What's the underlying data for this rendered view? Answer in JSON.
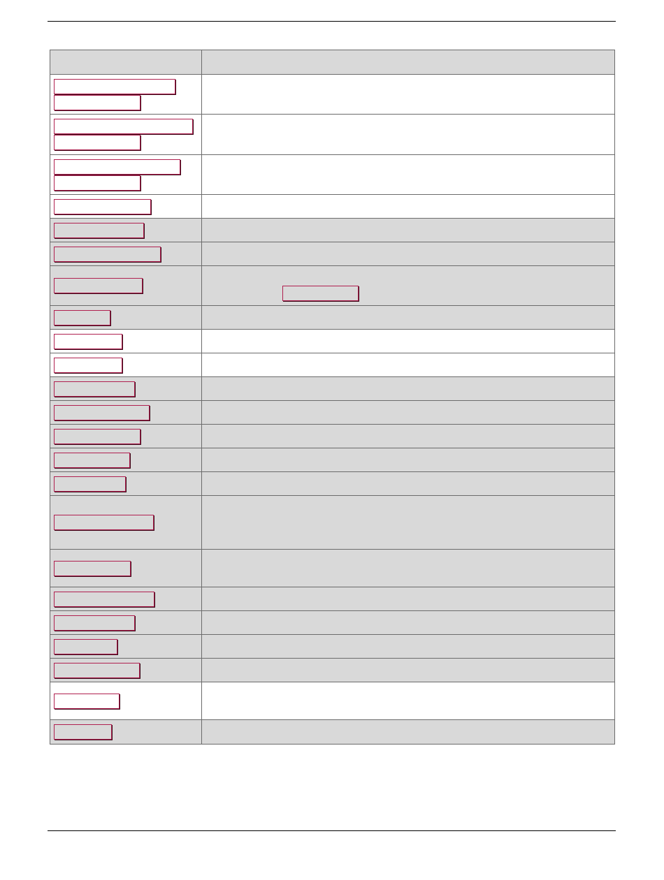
{
  "table": {
    "headers": [
      "",
      ""
    ],
    "rows": [
      {
        "links": [
          "",
          ""
        ],
        "description": ""
      },
      {
        "links": [
          "",
          ""
        ],
        "description": ""
      },
      {
        "links": [
          "",
          ""
        ],
        "description": ""
      },
      {
        "links": [
          ""
        ],
        "description": ""
      },
      {
        "links": [
          ""
        ],
        "description": ""
      },
      {
        "links": [
          ""
        ],
        "description": ""
      },
      {
        "links": [
          ""
        ],
        "description": "",
        "inline_link": ""
      },
      {
        "links": [
          ""
        ],
        "description": ""
      },
      {
        "links": [
          ""
        ],
        "description": ""
      },
      {
        "links": [
          ""
        ],
        "description": ""
      },
      {
        "links": [
          ""
        ],
        "description": ""
      },
      {
        "links": [
          ""
        ],
        "description": ""
      },
      {
        "links": [
          ""
        ],
        "description": ""
      },
      {
        "links": [
          ""
        ],
        "description": ""
      },
      {
        "links": [
          ""
        ],
        "description": ""
      },
      {
        "links": [
          ""
        ],
        "description": ""
      },
      {
        "links": [
          ""
        ],
        "description": ""
      },
      {
        "links": [
          ""
        ],
        "description": ""
      },
      {
        "links": [
          ""
        ],
        "description": ""
      },
      {
        "links": [
          ""
        ],
        "description": ""
      },
      {
        "links": [
          ""
        ],
        "description": ""
      },
      {
        "links": [
          ""
        ],
        "description": ""
      },
      {
        "links": [
          ""
        ],
        "description": ""
      }
    ]
  },
  "colors": {
    "link_border": "#b02050",
    "row_shade": "#d9d9d9"
  }
}
